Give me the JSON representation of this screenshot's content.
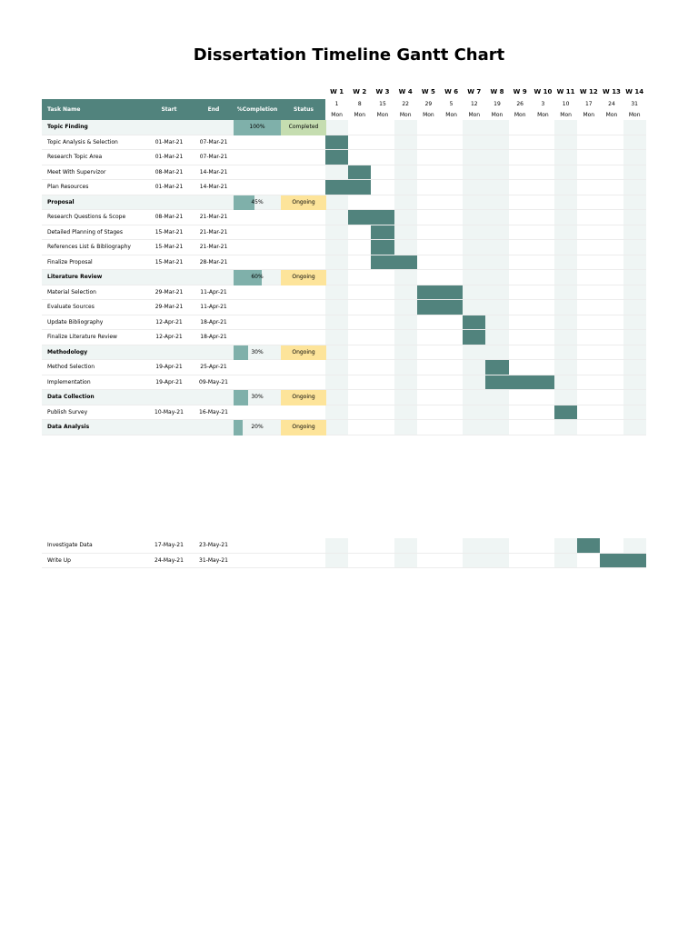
{
  "title": "Dissertation Timeline Gantt Chart",
  "headers": {
    "task": "Task Name",
    "start": "Start",
    "end": "End",
    "completion": "%Completion",
    "status": "Status"
  },
  "weeks": [
    {
      "label": "W 1",
      "date": "1",
      "day": "Mon"
    },
    {
      "label": "W 2",
      "date": "8",
      "day": "Mon"
    },
    {
      "label": "W 3",
      "date": "15",
      "day": "Mon"
    },
    {
      "label": "W 4",
      "date": "22",
      "day": "Mon"
    },
    {
      "label": "W 5",
      "date": "29",
      "day": "Mon"
    },
    {
      "label": "W 6",
      "date": "5",
      "day": "Mon"
    },
    {
      "label": "W 7",
      "date": "12",
      "day": "Mon"
    },
    {
      "label": "W 8",
      "date": "19",
      "day": "Mon"
    },
    {
      "label": "W 9",
      "date": "26",
      "day": "Mon"
    },
    {
      "label": "W 10",
      "date": "3",
      "day": "Mon"
    },
    {
      "label": "W 11",
      "date": "10",
      "day": "Mon"
    },
    {
      "label": "W 12",
      "date": "17",
      "day": "Mon"
    },
    {
      "label": "W 13",
      "date": "24",
      "day": "Mon"
    },
    {
      "label": "W 14",
      "date": "31",
      "day": "Mon"
    }
  ],
  "colors": {
    "header": "#51837d",
    "bar": "#51837d",
    "progress": "#7fb0aa",
    "completed": "#c5ddb0",
    "ongoing": "#fde49a",
    "section_row": "#eff5f4",
    "week_shade": "#eff5f4"
  },
  "rows": [
    {
      "type": "section",
      "name": "Topic Finding",
      "completion": 100,
      "completion_label": "100%",
      "status": "Completed"
    },
    {
      "type": "task",
      "name": "Topic Analysis & Selection",
      "start": "01-Mar-21",
      "end": "07-Mar-21",
      "start_week": 1,
      "end_week": 1
    },
    {
      "type": "task",
      "name": "Research Topic Area",
      "start": "01-Mar-21",
      "end": "07-Mar-21",
      "start_week": 1,
      "end_week": 1
    },
    {
      "type": "task",
      "name": "Meet With Supervizor",
      "start": "08-Mar-21",
      "end": "14-Mar-21",
      "start_week": 2,
      "end_week": 2
    },
    {
      "type": "task",
      "name": "Plan Resources",
      "start": "01-Mar-21",
      "end": "14-Mar-21",
      "start_week": 1,
      "end_week": 2
    },
    {
      "type": "section",
      "name": "Proposal",
      "completion": 45,
      "completion_label": "45%",
      "status": "Ongoing"
    },
    {
      "type": "task",
      "name": "Research Questions & Scope",
      "start": "08-Mar-21",
      "end": "21-Mar-21",
      "start_week": 2,
      "end_week": 3
    },
    {
      "type": "task",
      "name": "Detailed Planning of Stages",
      "start": "15-Mar-21",
      "end": "21-Mar-21",
      "start_week": 3,
      "end_week": 3
    },
    {
      "type": "task",
      "name": "References List & Bibliography",
      "start": "15-Mar-21",
      "end": "21-Mar-21",
      "start_week": 3,
      "end_week": 3
    },
    {
      "type": "task",
      "name": "Finalize Proposal",
      "start": "15-Mar-21",
      "end": "28-Mar-21",
      "start_week": 3,
      "end_week": 4
    },
    {
      "type": "section",
      "name": "Literature Review",
      "completion": 60,
      "completion_label": "60%",
      "status": "Ongoing"
    },
    {
      "type": "task",
      "name": "Material Selection",
      "start": "29-Mar-21",
      "end": "11-Apr-21",
      "start_week": 5,
      "end_week": 6
    },
    {
      "type": "task",
      "name": "Evaluate Sources",
      "start": "29-Mar-21",
      "end": "11-Apr-21",
      "start_week": 5,
      "end_week": 6
    },
    {
      "type": "task",
      "name": "Update Bibliography",
      "start": "12-Apr-21",
      "end": "18-Apr-21",
      "start_week": 7,
      "end_week": 7
    },
    {
      "type": "task",
      "name": "Finalize Literature Review",
      "start": "12-Apr-21",
      "end": "18-Apr-21",
      "start_week": 7,
      "end_week": 7
    },
    {
      "type": "section",
      "name": "Methodology",
      "completion": 30,
      "completion_label": "30%",
      "status": "Ongoing"
    },
    {
      "type": "task",
      "name": "Method Selection",
      "start": "19-Apr-21",
      "end": "25-Apr-21",
      "start_week": 8,
      "end_week": 8
    },
    {
      "type": "task",
      "name": "Implementation",
      "start": "19-Apr-21",
      "end": "09-May-21",
      "start_week": 8,
      "end_week": 10
    },
    {
      "type": "section",
      "name": "Data Collection",
      "completion": 30,
      "completion_label": "30%",
      "status": "Ongoing"
    },
    {
      "type": "task",
      "name": "Publish Survey",
      "start": "10-May-21",
      "end": "16-May-21",
      "start_week": 11,
      "end_week": 11
    },
    {
      "type": "section",
      "name": "Data Analysis",
      "completion": 20,
      "completion_label": "20%",
      "status": "Ongoing"
    }
  ],
  "continued_rows": [
    {
      "type": "task",
      "name": "Investigate Data",
      "start": "17-May-21",
      "end": "23-May-21",
      "start_week": 12,
      "end_week": 12
    },
    {
      "type": "task",
      "name": "Write Up",
      "start": "24-May-21",
      "end": "31-May-21",
      "start_week": 13,
      "end_week": 14
    }
  ]
}
